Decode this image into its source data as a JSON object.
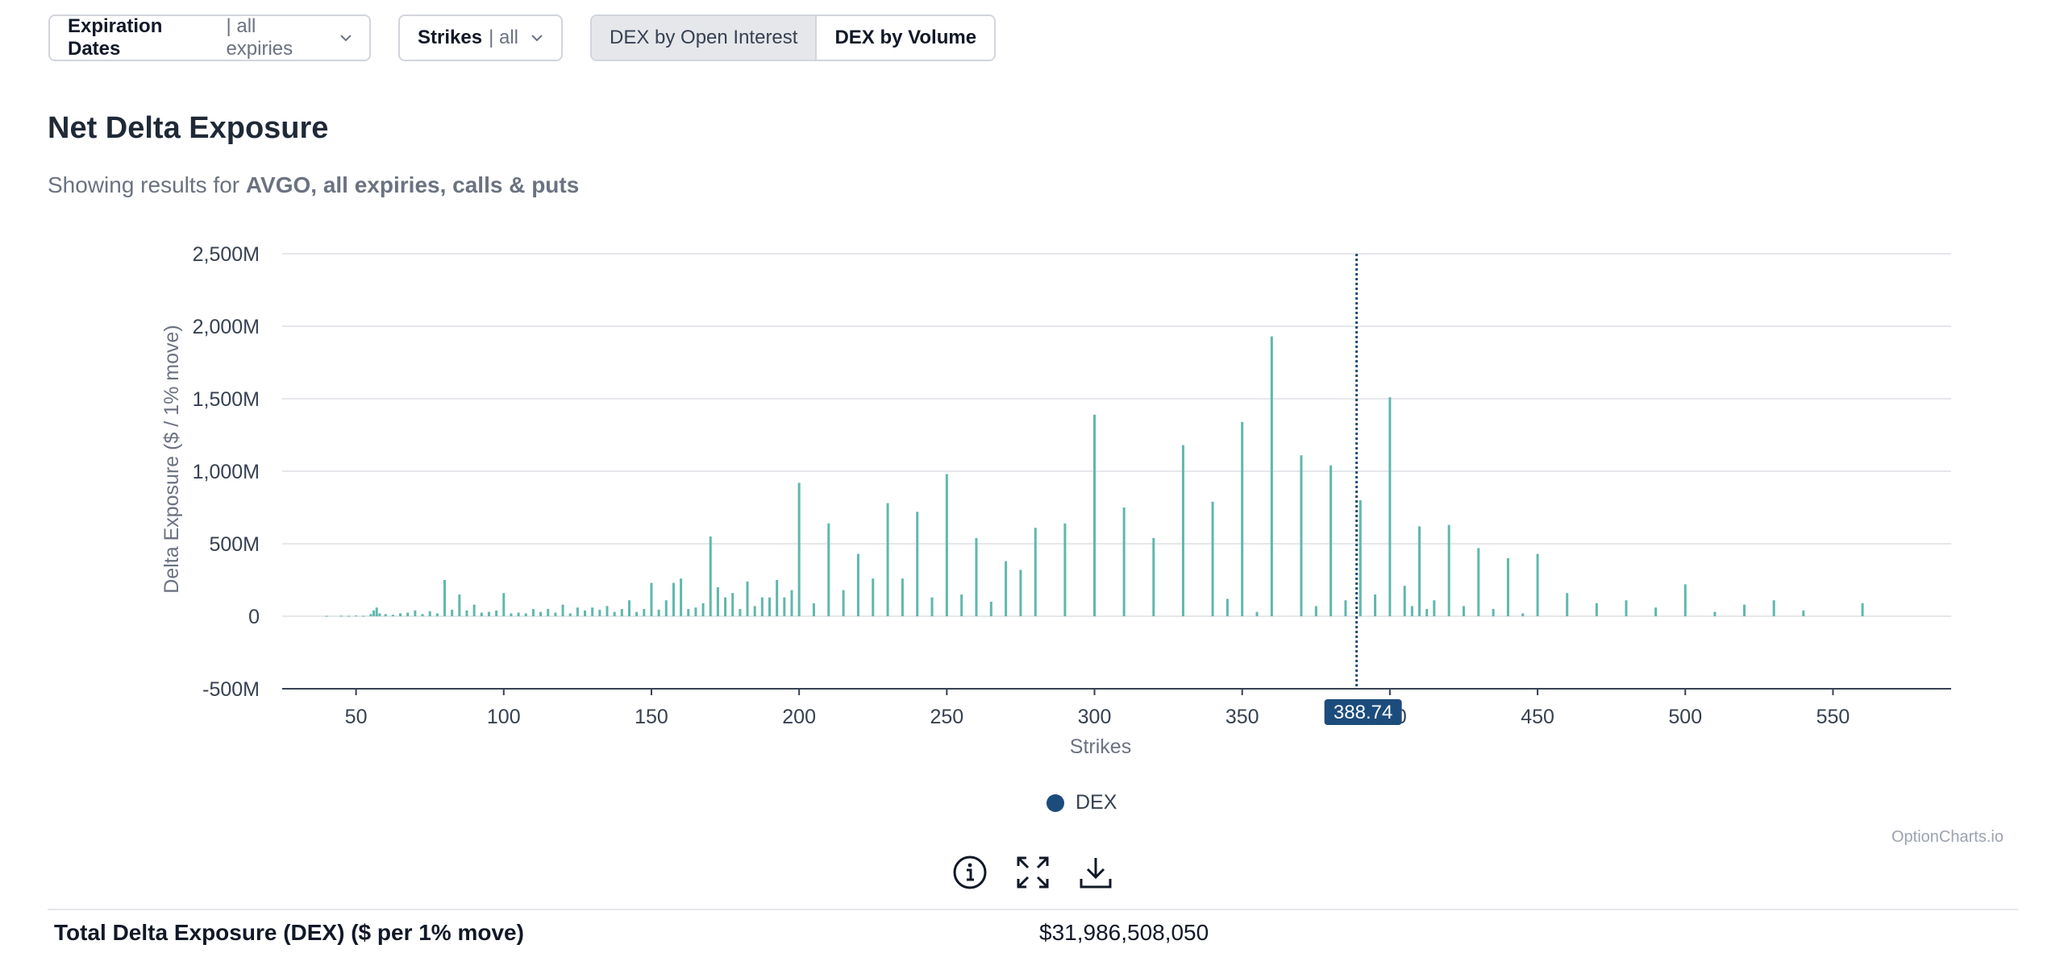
{
  "controls": {
    "expiration": {
      "label": "Expiration Dates",
      "value": "| all expiries"
    },
    "strikes": {
      "label": "Strikes",
      "value": "| all"
    },
    "dex_oi_label": "DEX by Open Interest",
    "dex_volume_label": "DEX by Volume"
  },
  "header": {
    "title": "Net Delta Exposure",
    "subtitle_prefix": "Showing results for",
    "subtitle_bold": "AVGO, all expiries, calls & puts"
  },
  "legend": {
    "series_label": "DEX"
  },
  "credit": "OptionCharts.io",
  "summary": {
    "label": "Total Delta Exposure (DEX) ($ per 1% move)",
    "value": "$31,986,508,050"
  },
  "colors": {
    "bar": "#5fb8ac",
    "legend_dot": "#1c4c7c",
    "spot_line": "#1c4c7c",
    "spot_badge": "#1c4c7c",
    "grid": "#e5e7eb",
    "axis": "#374151"
  },
  "chart_data": {
    "type": "bar",
    "xlabel": "Strikes",
    "ylabel": "Delta Exposure ($ / 1% move)",
    "xlim": [
      25,
      590
    ],
    "ylim": [
      -500,
      2500
    ],
    "x_ticks": [
      50,
      100,
      150,
      200,
      250,
      300,
      350,
      400,
      450,
      500,
      550
    ],
    "x_tick_labels": [
      "50",
      "100",
      "150",
      "200",
      "250",
      "300",
      "350",
      "400",
      "450",
      "500",
      "550"
    ],
    "y_ticks": [
      -500,
      0,
      500,
      1000,
      1500,
      2000,
      2500
    ],
    "y_tick_labels": [
      "-500M",
      "0",
      "500M",
      "1,000M",
      "1,500M",
      "2,000M",
      "2,500M"
    ],
    "spot_price": 388.74,
    "spot_label": "388.74",
    "grid": true,
    "legend_position": "bottom",
    "series": [
      {
        "name": "DEX",
        "unit": "M",
        "points": [
          [
            40,
            3
          ],
          [
            45,
            4
          ],
          [
            47.5,
            3
          ],
          [
            50,
            5
          ],
          [
            52.5,
            3
          ],
          [
            55,
            15
          ],
          [
            56,
            40
          ],
          [
            57,
            60
          ],
          [
            58,
            20
          ],
          [
            60,
            15
          ],
          [
            62.5,
            10
          ],
          [
            65,
            20
          ],
          [
            67.5,
            25
          ],
          [
            70,
            40
          ],
          [
            72.5,
            15
          ],
          [
            75,
            35
          ],
          [
            77.5,
            20
          ],
          [
            80,
            250
          ],
          [
            82.5,
            45
          ],
          [
            85,
            150
          ],
          [
            87.5,
            40
          ],
          [
            90,
            80
          ],
          [
            92.5,
            25
          ],
          [
            95,
            30
          ],
          [
            97.5,
            40
          ],
          [
            100,
            160
          ],
          [
            102.5,
            20
          ],
          [
            105,
            25
          ],
          [
            107.5,
            20
          ],
          [
            110,
            50
          ],
          [
            112.5,
            30
          ],
          [
            115,
            50
          ],
          [
            117.5,
            25
          ],
          [
            120,
            80
          ],
          [
            122.5,
            20
          ],
          [
            125,
            60
          ],
          [
            127.5,
            40
          ],
          [
            130,
            60
          ],
          [
            132.5,
            45
          ],
          [
            135,
            70
          ],
          [
            137.5,
            30
          ],
          [
            140,
            50
          ],
          [
            142.5,
            110
          ],
          [
            145,
            30
          ],
          [
            147.5,
            50
          ],
          [
            150,
            230
          ],
          [
            152.5,
            45
          ],
          [
            155,
            110
          ],
          [
            157.5,
            230
          ],
          [
            160,
            260
          ],
          [
            162.5,
            50
          ],
          [
            165,
            60
          ],
          [
            167.5,
            90
          ],
          [
            170,
            550
          ],
          [
            172.5,
            200
          ],
          [
            175,
            130
          ],
          [
            177.5,
            160
          ],
          [
            180,
            50
          ],
          [
            182.5,
            240
          ],
          [
            185,
            70
          ],
          [
            187.5,
            130
          ],
          [
            190,
            130
          ],
          [
            192.5,
            250
          ],
          [
            195,
            130
          ],
          [
            197.5,
            180
          ],
          [
            200,
            920
          ],
          [
            205,
            90
          ],
          [
            210,
            640
          ],
          [
            215,
            180
          ],
          [
            220,
            430
          ],
          [
            225,
            260
          ],
          [
            230,
            780
          ],
          [
            235,
            260
          ],
          [
            240,
            720
          ],
          [
            245,
            130
          ],
          [
            250,
            980
          ],
          [
            255,
            150
          ],
          [
            260,
            540
          ],
          [
            265,
            100
          ],
          [
            270,
            380
          ],
          [
            275,
            320
          ],
          [
            280,
            610
          ],
          [
            290,
            640
          ],
          [
            300,
            1390
          ],
          [
            310,
            750
          ],
          [
            320,
            540
          ],
          [
            330,
            1180
          ],
          [
            340,
            790
          ],
          [
            345,
            120
          ],
          [
            350,
            1340
          ],
          [
            355,
            30
          ],
          [
            360,
            1930
          ],
          [
            370,
            1110
          ],
          [
            375,
            70
          ],
          [
            380,
            1040
          ],
          [
            385,
            110
          ],
          [
            390,
            800
          ],
          [
            395,
            150
          ],
          [
            400,
            1510
          ],
          [
            405,
            210
          ],
          [
            407.5,
            70
          ],
          [
            410,
            620
          ],
          [
            412.5,
            50
          ],
          [
            415,
            110
          ],
          [
            420,
            630
          ],
          [
            425,
            70
          ],
          [
            430,
            470
          ],
          [
            435,
            50
          ],
          [
            440,
            400
          ],
          [
            445,
            20
          ],
          [
            450,
            430
          ],
          [
            460,
            160
          ],
          [
            470,
            90
          ],
          [
            480,
            110
          ],
          [
            490,
            60
          ],
          [
            500,
            220
          ],
          [
            510,
            30
          ],
          [
            520,
            80
          ],
          [
            530,
            110
          ],
          [
            540,
            40
          ],
          [
            560,
            90
          ]
        ]
      }
    ]
  }
}
